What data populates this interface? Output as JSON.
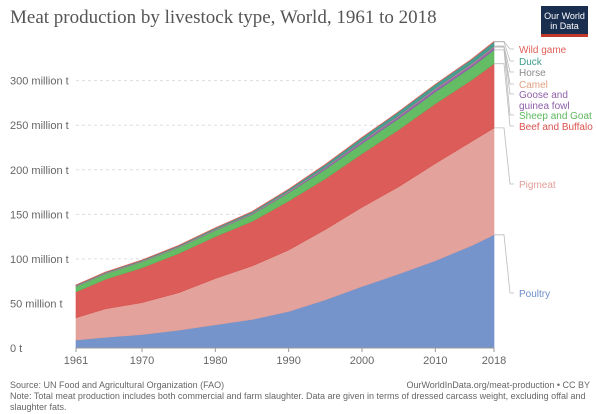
{
  "header": {
    "title": "Meat production by livestock type, World, 1961 to 2018",
    "logo_line1": "Our World",
    "logo_line2": "in Data"
  },
  "footer": {
    "source": "Source: UN Food and Agricultural Organization (FAO)",
    "url": "OurWorldInData.org/meat-production • CC BY",
    "note": "Note: Total meat production includes both commercial and farm slaughter. Data are given in terms of dressed carcass weight, excluding offal and slaughter fats."
  },
  "colors": {
    "Poultry": "#6d8ec8",
    "Pigmeat": "#e19e97",
    "Beef and Buffalo": "#d9534f",
    "Sheep and Goat": "#5cb85c",
    "Goose and guinea fowl": "#8e5fa8",
    "Camel": "#e2a183",
    "Horse": "#8a8a8a",
    "Duck": "#3d9a8b",
    "Wild game": "#e0605a"
  },
  "chart_data": {
    "type": "area",
    "stacked": true,
    "title": "Meat production by livestock type, World, 1961 to 2018",
    "xlabel": "",
    "ylabel": "",
    "xlim": [
      1961,
      2018
    ],
    "ylim": [
      0,
      340000000
    ],
    "x_ticks": [
      1961,
      1970,
      1980,
      1990,
      2000,
      2010,
      2018
    ],
    "x_tick_labels": [
      "1961",
      "1970",
      "1980",
      "1990",
      "2000",
      "2010",
      "2018"
    ],
    "y_ticks": [
      0,
      50000000,
      100000000,
      150000000,
      200000000,
      250000000,
      300000000
    ],
    "y_tick_labels": [
      "0 t",
      "50 million t",
      "100 million t",
      "150 million t",
      "200 million t",
      "250 million t",
      "300 million t"
    ],
    "grid": "horizontal-dashed",
    "legend": "right",
    "x": [
      1961,
      1965,
      1970,
      1975,
      1980,
      1985,
      1990,
      1995,
      2000,
      2005,
      2010,
      2015,
      2018
    ],
    "series": [
      {
        "name": "Poultry",
        "values": [
          9000000,
          12000000,
          15000000,
          20000000,
          26000000,
          32000000,
          41000000,
          54000000,
          69000000,
          83000000,
          98000000,
          115000000,
          127000000
        ]
      },
      {
        "name": "Pigmeat",
        "values": [
          25000000,
          32000000,
          36000000,
          42000000,
          52000000,
          60000000,
          69000000,
          79000000,
          89000000,
          98000000,
          109000000,
          117000000,
          120000000
        ]
      },
      {
        "name": "Beef and Buffalo",
        "values": [
          29000000,
          33000000,
          39000000,
          44000000,
          47000000,
          50000000,
          55000000,
          57000000,
          60000000,
          64000000,
          67000000,
          69000000,
          72000000
        ]
      },
      {
        "name": "Sheep and Goat",
        "values": [
          6000000,
          6300000,
          6600000,
          6800000,
          7000000,
          7800000,
          9200000,
          10500000,
          11500000,
          12500000,
          13400000,
          14500000,
          15500000
        ]
      },
      {
        "name": "Goose and guinea fowl",
        "values": [
          300000,
          350000,
          400000,
          450000,
          600000,
          800000,
          1200000,
          1700000,
          2200000,
          2600000,
          2900000,
          3000000,
          3100000
        ]
      },
      {
        "name": "Camel",
        "values": [
          200000,
          210000,
          220000,
          230000,
          250000,
          260000,
          280000,
          300000,
          330000,
          360000,
          390000,
          420000,
          450000
        ]
      },
      {
        "name": "Horse",
        "values": [
          500000,
          520000,
          550000,
          550000,
          560000,
          600000,
          630000,
          700000,
          730000,
          750000,
          770000,
          780000,
          780000
        ]
      },
      {
        "name": "Duck",
        "values": [
          500000,
          600000,
          750000,
          900000,
          1100000,
          1300000,
          1700000,
          2600000,
          3300000,
          3800000,
          4200000,
          4500000,
          4800000
        ]
      },
      {
        "name": "Wild game",
        "values": [
          300000,
          300000,
          320000,
          330000,
          350000,
          360000,
          380000,
          380000,
          380000,
          390000,
          390000,
          390000,
          390000
        ]
      }
    ],
    "legend_entries": [
      {
        "name": "Wild game",
        "lines": [
          "Wild game"
        ]
      },
      {
        "name": "Duck",
        "lines": [
          "Duck"
        ]
      },
      {
        "name": "Horse",
        "lines": [
          "Horse"
        ]
      },
      {
        "name": "Camel",
        "lines": [
          "Camel"
        ]
      },
      {
        "name": "Goose and guinea fowl",
        "lines": [
          "Goose and",
          "guinea fowl"
        ]
      },
      {
        "name": "Sheep and Goat",
        "lines": [
          "Sheep and Goat"
        ]
      },
      {
        "name": "Beef and Buffalo",
        "lines": [
          "Beef and Buffalo"
        ]
      },
      {
        "name": "Pigmeat",
        "lines": [
          "Pigmeat"
        ]
      },
      {
        "name": "Poultry",
        "lines": [
          "Poultry"
        ]
      }
    ]
  }
}
